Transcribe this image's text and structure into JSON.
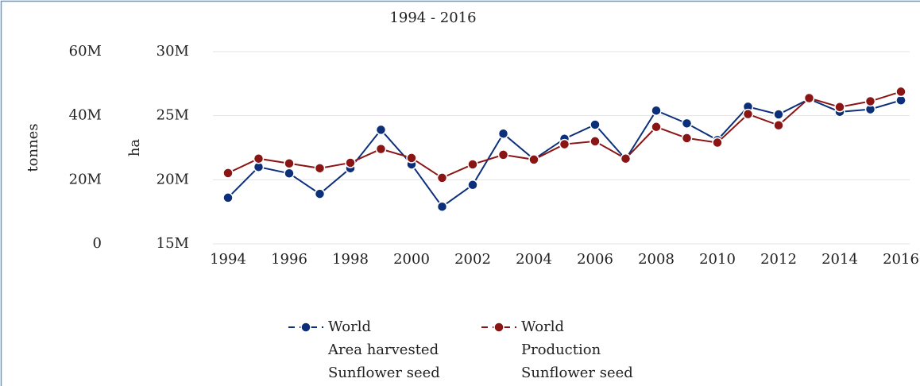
{
  "chart_data": {
    "type": "line",
    "title": "1994 - 2016",
    "ylabel": "tonnes",
    "y2label": "ha",
    "x": [
      1994,
      1995,
      1996,
      1997,
      1998,
      1999,
      2000,
      2001,
      2002,
      2003,
      2004,
      2005,
      2006,
      2007,
      2008,
      2009,
      2010,
      2011,
      2012,
      2013,
      2014,
      2015,
      2016
    ],
    "xlim": [
      1994,
      2016
    ],
    "xticks": [
      1994,
      1996,
      1998,
      2000,
      2002,
      2004,
      2006,
      2008,
      2010,
      2012,
      2014,
      2016
    ],
    "ylim": [
      0,
      60000000
    ],
    "yticks": [
      {
        "value": 0,
        "label": "0"
      },
      {
        "value": 20000000,
        "label": "20M"
      },
      {
        "value": 40000000,
        "label": "40M"
      },
      {
        "value": 60000000,
        "label": "60M"
      }
    ],
    "y2lim": [
      15000000,
      30000000
    ],
    "y2ticks": [
      {
        "value": 15000000,
        "label": "15M"
      },
      {
        "value": 20000000,
        "label": "20M"
      },
      {
        "value": 25000000,
        "label": "25M"
      },
      {
        "value": 30000000,
        "label": "30M"
      }
    ],
    "grid": true,
    "legend": "bottom",
    "series": [
      {
        "name": [
          "World",
          "Area harvested",
          "Sunflower seed"
        ],
        "color": "#0c2f7a",
        "axis": "y2",
        "values": [
          18600000,
          21000000,
          20500000,
          18900000,
          20900000,
          23900000,
          21200000,
          17900000,
          19600000,
          23600000,
          21600000,
          23200000,
          24300000,
          21600000,
          25400000,
          24400000,
          23100000,
          25700000,
          25100000,
          26300000,
          25300000,
          25500000,
          26200000
        ]
      },
      {
        "name": [
          "World",
          "Production",
          "Sunflower seed"
        ],
        "color": "#8b1414",
        "values": [
          22100000,
          26600000,
          25100000,
          23600000,
          25300000,
          29600000,
          26800000,
          20600000,
          24800000,
          27800000,
          26300000,
          31100000,
          32000000,
          26600000,
          36500000,
          33000000,
          31600000,
          40500000,
          37000000,
          45500000,
          42700000,
          44500000,
          47500000
        ]
      }
    ]
  }
}
